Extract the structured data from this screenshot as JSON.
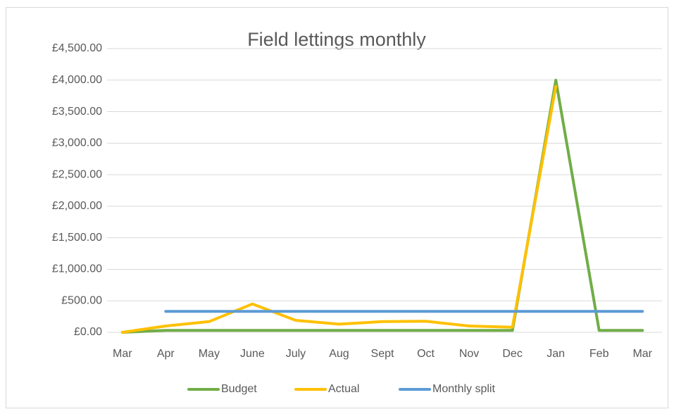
{
  "chart_data": {
    "type": "line",
    "title": "Field lettings monthly",
    "categories": [
      "Mar",
      "Apr",
      "May",
      "June",
      "July",
      "Aug",
      "Sept",
      "Oct",
      "Nov",
      "Dec",
      "Jan",
      "Feb",
      "Mar"
    ],
    "series": [
      {
        "name": "Budget",
        "color": "#70ad47",
        "values": [
          0,
          30,
          30,
          30,
          30,
          30,
          30,
          30,
          30,
          30,
          4000,
          30,
          30
        ]
      },
      {
        "name": "Actual",
        "color": "#ffc000",
        "values": [
          0,
          100,
          170,
          450,
          190,
          130,
          170,
          175,
          100,
          80,
          3900,
          null,
          null
        ]
      },
      {
        "name": "Monthly split",
        "color": "#5b9bd5",
        "values": [
          null,
          333,
          333,
          333,
          333,
          333,
          333,
          333,
          333,
          333,
          333,
          333,
          333
        ]
      }
    ],
    "ylim": [
      0,
      4500
    ],
    "yticks": [
      {
        "value": 0,
        "label": "£0.00"
      },
      {
        "value": 500,
        "label": "£500.00"
      },
      {
        "value": 1000,
        "label": "£1,000.00"
      },
      {
        "value": 1500,
        "label": "£1,500.00"
      },
      {
        "value": 2000,
        "label": "£2,000.00"
      },
      {
        "value": 2500,
        "label": "£2,500.00"
      },
      {
        "value": 3000,
        "label": "£3,000.00"
      },
      {
        "value": 3500,
        "label": "£3,500.00"
      },
      {
        "value": 4000,
        "label": "£4,000.00"
      },
      {
        "value": 4500,
        "label": "£4,500.00"
      }
    ],
    "grid": true,
    "legend": "bottom"
  }
}
